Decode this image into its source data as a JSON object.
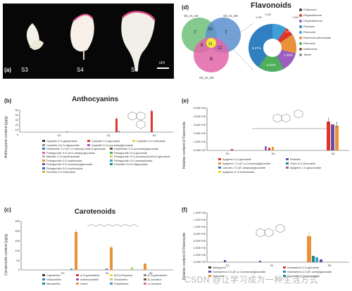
{
  "panel_a": {
    "letter": "(a)",
    "labels": [
      "S3",
      "S4",
      "S6"
    ],
    "scale": "cm"
  },
  "panel_b": {
    "letter": "(b)",
    "title": "Anthocyanins",
    "ylabel": "Anthocyanin content (μg/g)",
    "ticks": [
      "50",
      "40",
      "30",
      "20",
      "10",
      "0"
    ],
    "stages": [
      "S3",
      "S4",
      "S6"
    ],
    "legend": [
      "Cyanidin 3-O-galactoside",
      "Cyanidin 3-O-glucoside",
      "Cyanidin 3-O-rutinoside",
      "Cyanidin-3,5-O-diglucoside",
      "Cyanidin 3-O-(coumaryl)glucoside",
      "Delphinidin 3-O-(6''-O-malonyl)-beta-D-glucoside",
      "Delphinidin 3-O-(coumaryl)glucoside",
      "Pelargonidin 3-O-(6-O-acetyl)-glucoside",
      "Pelargonidin 3-O-glucoside",
      "Malvidin 3-O-sambubioside",
      "Pelargonidin 3-O-(coumaryl)-beta-D-glucoside",
      "Pelargonidin 3-O-arabinoside",
      "Pelargonidin 3-O-sambubioside",
      "Pelargonidin 3-O-(coumaryl)glucoside",
      "Petunidin 3,5-O-diglucoside",
      "Pelargonidin 3-O-sophoroside",
      "Peonidin 3-O-rutinoside"
    ]
  },
  "panel_c": {
    "letter": "(c)",
    "title": "Carotenoids",
    "ylabel": "Carotenoids content (μg/g)",
    "ticks": [
      "250",
      "200",
      "150",
      "100",
      "50",
      "0"
    ],
    "stages": [
      "S3",
      "S4",
      "S6"
    ],
    "legend": [
      "Capsanthin",
      "α-Cryptoxanthin",
      "(E/Z)-Phytoene",
      "β-Cryptoxanthin",
      "Violaxanthin",
      "Antheraxanthin",
      "Zeaxanthin",
      "β-Carotene",
      "Neoxanthin",
      "Lutein",
      "Phytofluene",
      "γ-Carotene"
    ]
  },
  "panel_d": {
    "letter": "(d)",
    "title": "Flavonoids",
    "venn_labels": [
      "S3_vs_S4",
      "S3_vs_S6",
      "S4_vs_S6"
    ],
    "venn_counts": [
      "7",
      "16",
      "7",
      "31",
      "8",
      "22",
      "8"
    ],
    "pie_labels": [
      "1.3%",
      "1.3%",
      "1.3%",
      "8.27%",
      "1.4%",
      "7.23%",
      "8.20%"
    ],
    "legend": [
      "Chalcones",
      "Dihydroflavone",
      "Dihydroflavonol",
      "Flavones",
      "Flavonoid",
      "Flavonoid carbonoside",
      "Flavonols",
      "Isoflavones",
      "Tannin"
    ],
    "colors": {
      "s3s4": "#6ec17b",
      "s3s6": "#5b8fcf",
      "s4s6": "#e265a8",
      "center": "#f2ea3c"
    }
  },
  "panel_e": {
    "letter": "(e)",
    "ylabel": "Relative content of Flavonoids",
    "ticks": [
      "5.00E+05",
      "4.00E+05",
      "3.00E+05",
      "2.00E+05",
      "1.00E+05",
      "0.00E+00"
    ],
    "stages": [
      "S3",
      "S4",
      "S6"
    ],
    "legend": [
      "Apigenin-5-O-glucoside",
      "Rhoifolin",
      "Apigenin-7-O-(6''-p-Coumaryl)glucoside",
      "Tricin-5-O-Glucoside",
      "Luteolin-7-O-(6''-sinapoyl)glucoside",
      "Apigenin-7-O-glucuronide",
      "Apigenin-4'-O-rhamnoside"
    ]
  },
  "panel_f": {
    "letter": "(f)",
    "ylabel": "Relative content of Flavonoids",
    "ticks": [
      "1.40E+06",
      "1.20E+06",
      "1.00E+06",
      "8.00E+05",
      "6.00E+05",
      "4.00E+05",
      "2.00E+05",
      "0.00E+00"
    ],
    "stages": [
      "S3",
      "S4",
      "S6"
    ],
    "legend": [
      "Naringenin",
      "Kaempferol-3-O-glucoside",
      "Kaempferol-3-O-(6''-p-Coumaroyl)glucoside",
      "Kaempferol-3-O-(6''-acetyl)glucoside",
      "Quercetin",
      "Quercetin-3-O-rhamnoside"
    ]
  },
  "watermark": "CSDN @让学习成为一种生活方式"
}
